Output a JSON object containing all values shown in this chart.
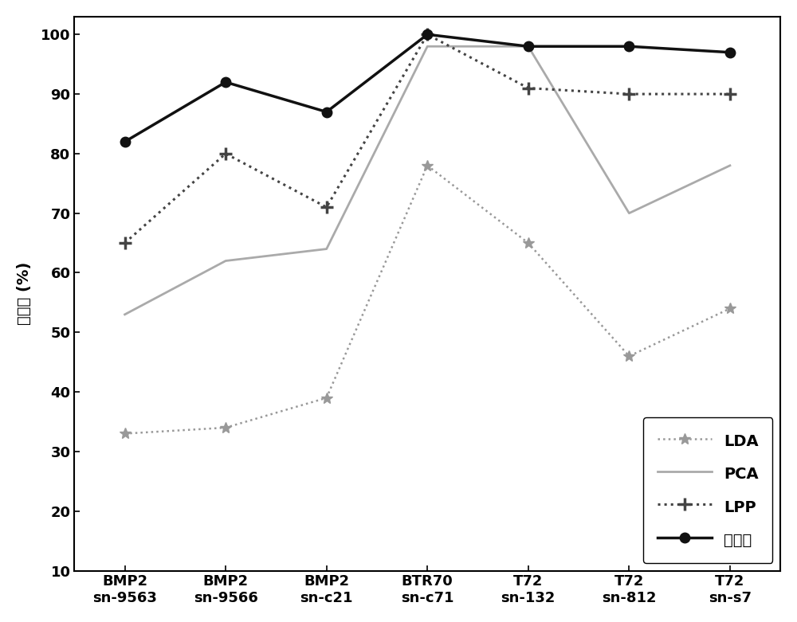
{
  "x_labels_top": [
    "BMP2",
    "BMP2",
    "BMP2",
    "BTR70",
    "T72",
    "T72",
    "T72"
  ],
  "x_labels_bottom": [
    "sn-9563",
    "sn-9566",
    "sn-c21",
    "sn-c71",
    "sn-132",
    "sn-812",
    "sn-s7"
  ],
  "x_positions": [
    0,
    1,
    2,
    3,
    4,
    5,
    6
  ],
  "LDA": [
    33,
    34,
    39,
    78,
    65,
    46,
    54
  ],
  "PCA": [
    53,
    62,
    64,
    98,
    98,
    70,
    78
  ],
  "LPP": [
    65,
    80,
    71,
    100,
    91,
    90,
    90
  ],
  "invention": [
    82,
    92,
    87,
    100,
    98,
    98,
    97
  ],
  "ylim": [
    10,
    103
  ],
  "yticks": [
    10,
    20,
    30,
    40,
    50,
    60,
    70,
    80,
    90,
    100
  ],
  "ylabel": "识别率 (%)",
  "legend_labels": [
    "LDA",
    "PCA",
    "LPP",
    "本发明"
  ],
  "lda_color": "#999999",
  "pca_color": "#aaaaaa",
  "lpp_color": "#444444",
  "invention_color": "#111111",
  "background_color": "#ffffff",
  "axis_fontsize": 14,
  "tick_fontsize": 13,
  "legend_fontsize": 14
}
